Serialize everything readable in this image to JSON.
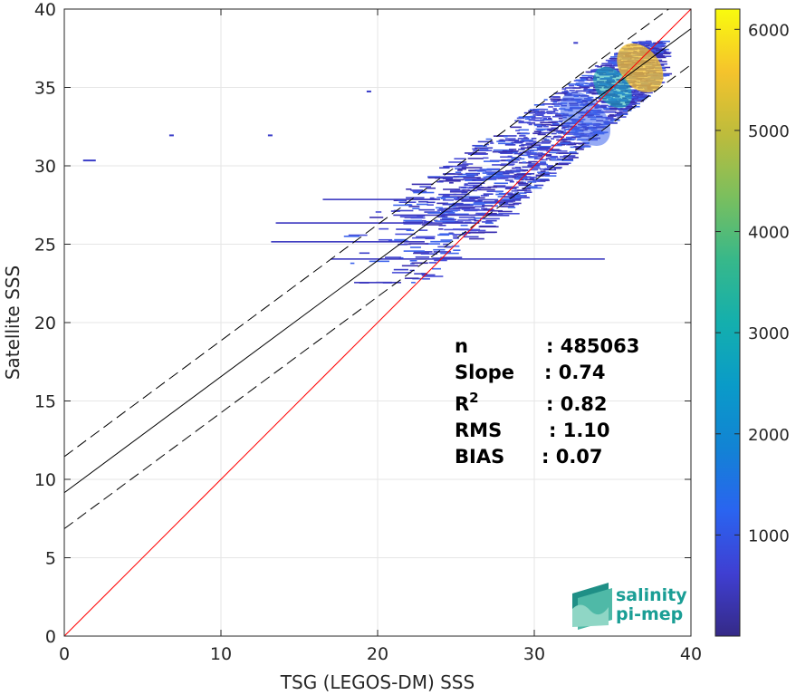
{
  "chart_data": {
    "type": "heatmap",
    "xlabel": "TSG (LEGOS-DM) SSS",
    "ylabel": "Satellite SSS",
    "xlim": [
      0,
      40
    ],
    "ylim": [
      0,
      40
    ],
    "xticks": [
      0,
      10,
      20,
      30,
      40
    ],
    "yticks": [
      0,
      5,
      10,
      15,
      20,
      25,
      30,
      35,
      40
    ],
    "grid": true,
    "colorbar": {
      "range": [
        0,
        6200
      ],
      "ticks": [
        1000,
        2000,
        3000,
        4000,
        5000,
        6000
      ],
      "colormap": "parula",
      "placement": "right"
    },
    "reference_line": {
      "slope": 1,
      "intercept": 0,
      "color": "#ff0000"
    },
    "fit_line": {
      "slope": 0.74,
      "intercept": 9.15,
      "color": "#000000"
    },
    "fit_bounds": [
      {
        "slope": 0.74,
        "intercept": 11.45
      },
      {
        "slope": 0.74,
        "intercept": 6.85
      }
    ],
    "density_regions": [
      {
        "x": [
          35.5,
          38
        ],
        "y": [
          34.5,
          38
        ],
        "count": 5200
      },
      {
        "x": [
          34,
          36
        ],
        "y": [
          33.5,
          36.5
        ],
        "count": 2200
      },
      {
        "x": [
          32,
          34.5
        ],
        "y": [
          31,
          35
        ],
        "count": 800
      }
    ],
    "stats": [
      {
        "label": "n",
        "value": ": 485063"
      },
      {
        "label": "Slope",
        "value": ": 0.74"
      },
      {
        "label": "R",
        "sup": "2",
        "value": ": 0.82"
      },
      {
        "label": "RMS",
        "value": ": 1.10"
      },
      {
        "label": "BIAS",
        "value": ": 0.07"
      }
    ]
  },
  "logo": {
    "line1": "salinity",
    "line2": "pi-mep"
  }
}
